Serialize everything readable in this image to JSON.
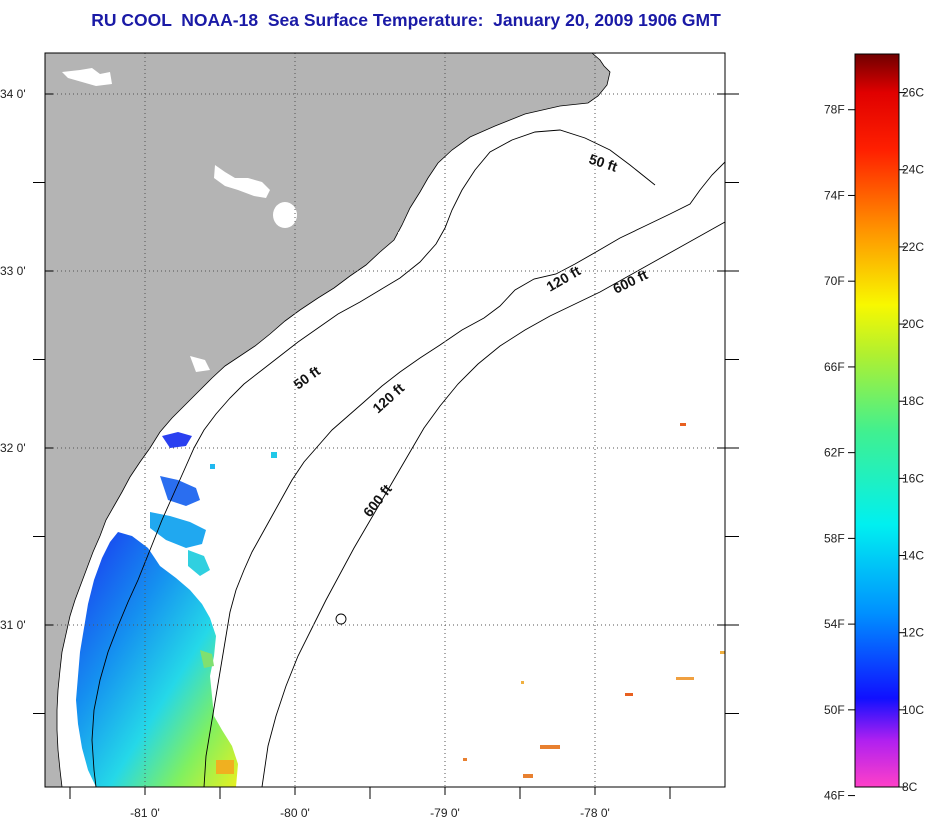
{
  "title": "RU COOL  NOAA-18  Sea Surface Temperature:  January 20, 2009 1906 GMT",
  "colors": {
    "land": "#b4b4b4",
    "ocean": "#ffffff",
    "coastline": "#000000",
    "frame": "#000000"
  },
  "map": {
    "lat_labels": [
      {
        "value": 34,
        "text": "34 0'"
      },
      {
        "value": 33,
        "text": "33 0'"
      },
      {
        "value": 32,
        "text": "32 0'"
      },
      {
        "value": 31,
        "text": "31 0'"
      }
    ],
    "lon_labels": [
      {
        "value": -81,
        "text": "-81 0'"
      },
      {
        "value": -80,
        "text": "-80 0'"
      },
      {
        "value": -79,
        "text": "-79 0'"
      },
      {
        "value": -78,
        "text": "-78 0'"
      }
    ],
    "contour_labels": [
      {
        "text": "50 ft",
        "depth_ft": 50
      },
      {
        "text": "50 ft",
        "depth_ft": 50
      },
      {
        "text": "120 ft",
        "depth_ft": 120
      },
      {
        "text": "120 ft",
        "depth_ft": 120
      },
      {
        "text": "600 ft",
        "depth_ft": 600
      },
      {
        "text": "600 ft",
        "depth_ft": 600
      }
    ]
  },
  "color_scale": {
    "min_c": 8,
    "max_c": 27,
    "fahrenheit_labels": [
      "78F",
      "74F",
      "70F",
      "66F",
      "62F",
      "58F",
      "54F",
      "50F",
      "46F"
    ],
    "celsius_labels": [
      "26C",
      "24C",
      "22C",
      "20C",
      "18C",
      "16C",
      "14C",
      "12C",
      "10C",
      "8C"
    ],
    "stops": [
      {
        "c": 8,
        "color": "#ff40c8"
      },
      {
        "c": 9.2,
        "color": "#b020f0"
      },
      {
        "c": 10.3,
        "color": "#1010ff"
      },
      {
        "c": 12.5,
        "color": "#0090ff"
      },
      {
        "c": 14.8,
        "color": "#00f0f0"
      },
      {
        "c": 17.2,
        "color": "#40f090"
      },
      {
        "c": 19.2,
        "color": "#b0f030"
      },
      {
        "c": 20.5,
        "color": "#f8f800"
      },
      {
        "c": 22.5,
        "color": "#ff9000"
      },
      {
        "c": 24.5,
        "color": "#ff2000"
      },
      {
        "c": 26,
        "color": "#e00000"
      },
      {
        "c": 27,
        "color": "#700000"
      }
    ]
  }
}
